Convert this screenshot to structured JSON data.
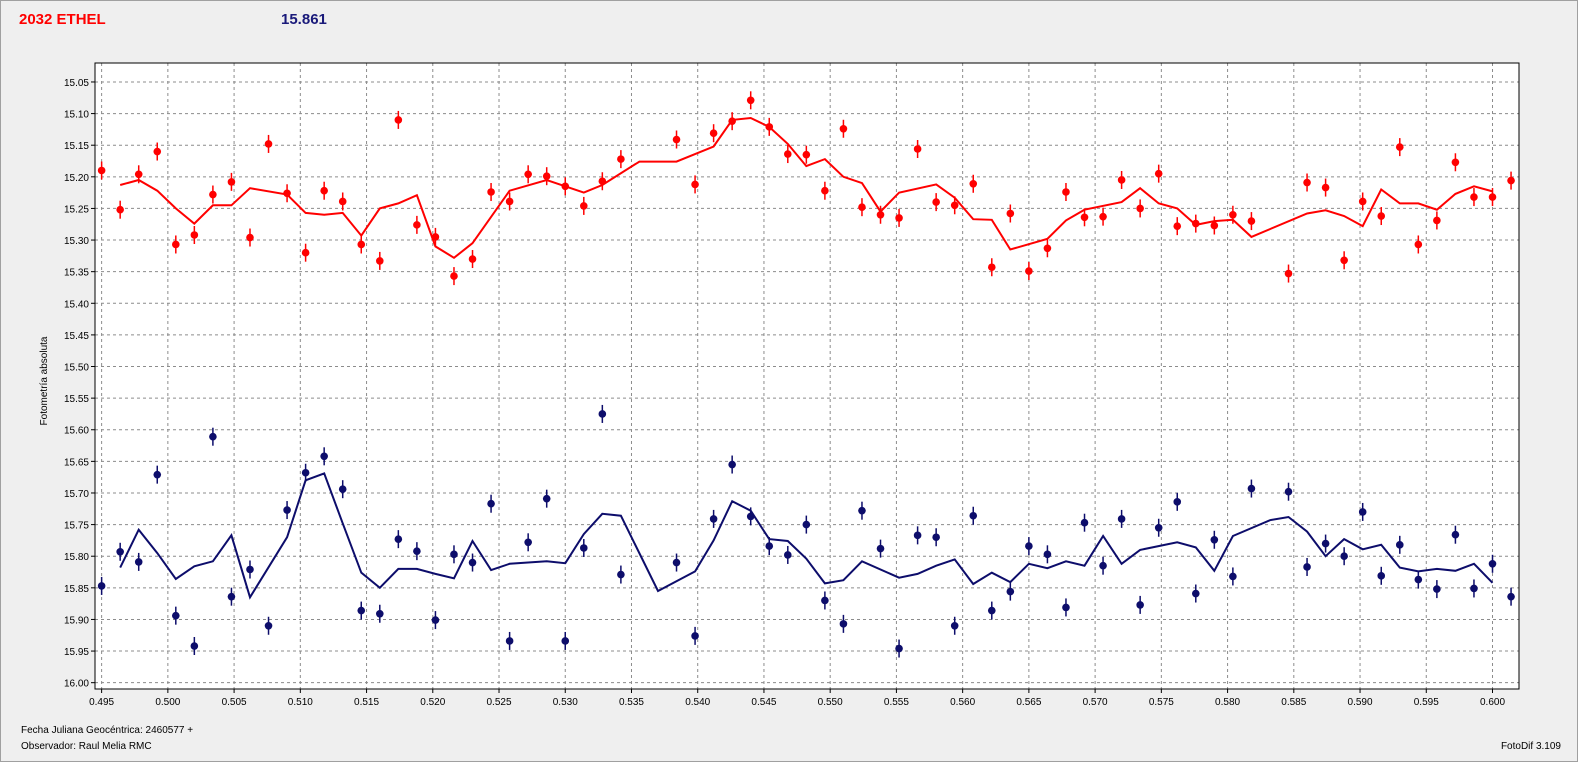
{
  "header": {
    "object_name": "2032 ETHEL",
    "mean_magnitude": "15.861"
  },
  "footer": {
    "jd_label": "Fecha Juliana Geocéntrica: 2460577 +",
    "observer_label": "Observador: Raul Melia RMC",
    "software_version": "FotoDif 3.109"
  },
  "colors": {
    "red_series": "#ff0000",
    "blue_series": "#0d0d6b",
    "background": "#ffffff",
    "grid": "#8c8c8c"
  },
  "chart_data": {
    "type": "scatter",
    "ylabel": "Fotometría absoluta",
    "xlabel": "",
    "xlim": [
      0.4945,
      0.602
    ],
    "ylim": [
      15.02,
      16.01
    ],
    "y_inverted": true,
    "grid": true,
    "x_ticks": [
      "0.495",
      "0.500",
      "0.505",
      "0.510",
      "0.515",
      "0.520",
      "0.525",
      "0.530",
      "0.535",
      "0.540",
      "0.545",
      "0.550",
      "0.555",
      "0.560",
      "0.565",
      "0.570",
      "0.575",
      "0.580",
      "0.585",
      "0.590",
      "0.595",
      "0.600"
    ],
    "y_ticks": [
      "15.05",
      "15.10",
      "15.15",
      "15.20",
      "15.25",
      "15.30",
      "15.35",
      "15.40",
      "15.45",
      "15.50",
      "15.55",
      "15.60",
      "15.65",
      "15.70",
      "15.75",
      "15.80",
      "15.85",
      "15.90",
      "15.95",
      "16.00"
    ],
    "series": [
      {
        "color": "#ff0000",
        "points": [
          [
            0.495,
            15.19
          ],
          [
            0.4964,
            15.252
          ],
          [
            0.4978,
            15.196
          ],
          [
            0.4992,
            15.16
          ],
          [
            0.5006,
            15.307
          ],
          [
            0.502,
            15.292
          ],
          [
            0.5034,
            15.228
          ],
          [
            0.5048,
            15.208
          ],
          [
            0.5062,
            15.296
          ],
          [
            0.5076,
            15.148
          ],
          [
            0.509,
            15.226
          ],
          [
            0.5104,
            15.32
          ],
          [
            0.5118,
            15.222
          ],
          [
            0.5132,
            15.239
          ],
          [
            0.5146,
            15.307
          ],
          [
            0.516,
            15.333
          ],
          [
            0.5174,
            15.11
          ],
          [
            0.5188,
            15.276
          ],
          [
            0.5202,
            15.295
          ],
          [
            0.5216,
            15.357
          ],
          [
            0.523,
            15.33
          ],
          [
            0.5244,
            15.224
          ],
          [
            0.5258,
            15.239
          ],
          [
            0.5272,
            15.196
          ],
          [
            0.5286,
            15.199
          ],
          [
            0.53,
            15.215
          ],
          [
            0.5314,
            15.246
          ],
          [
            0.5328,
            15.207
          ],
          [
            0.5342,
            15.172
          ],
          [
            0.5384,
            15.141
          ],
          [
            0.5398,
            15.212
          ],
          [
            0.5412,
            15.131
          ],
          [
            0.5426,
            15.112
          ],
          [
            0.544,
            15.079
          ],
          [
            0.5454,
            15.121
          ],
          [
            0.5468,
            15.164
          ],
          [
            0.5482,
            15.165
          ],
          [
            0.5496,
            15.222
          ],
          [
            0.551,
            15.124
          ],
          [
            0.5524,
            15.248
          ],
          [
            0.5538,
            15.26
          ],
          [
            0.5552,
            15.265
          ],
          [
            0.5566,
            15.156
          ],
          [
            0.558,
            15.24
          ],
          [
            0.5594,
            15.245
          ],
          [
            0.5608,
            15.211
          ],
          [
            0.5622,
            15.343
          ],
          [
            0.5636,
            15.258
          ],
          [
            0.565,
            15.349
          ],
          [
            0.5664,
            15.313
          ],
          [
            0.5678,
            15.224
          ],
          [
            0.5692,
            15.264
          ],
          [
            0.5706,
            15.263
          ],
          [
            0.572,
            15.205
          ],
          [
            0.5734,
            15.25
          ],
          [
            0.5748,
            15.195
          ],
          [
            0.5762,
            15.278
          ],
          [
            0.5776,
            15.274
          ],
          [
            0.579,
            15.277
          ],
          [
            0.5804,
            15.26
          ],
          [
            0.5818,
            15.27
          ],
          [
            0.5846,
            15.353
          ],
          [
            0.586,
            15.209
          ],
          [
            0.5874,
            15.217
          ],
          [
            0.5888,
            15.332
          ],
          [
            0.5902,
            15.239
          ],
          [
            0.5916,
            15.262
          ],
          [
            0.593,
            15.153
          ],
          [
            0.5944,
            15.307
          ],
          [
            0.5958,
            15.269
          ],
          [
            0.5972,
            15.177
          ],
          [
            0.5986,
            15.232
          ],
          [
            0.6,
            15.232
          ],
          [
            0.6014,
            15.206
          ]
        ],
        "trend": [
          [
            0.4964,
            15.213
          ],
          [
            0.4978,
            15.205
          ],
          [
            0.4992,
            15.222
          ],
          [
            0.5006,
            15.25
          ],
          [
            0.502,
            15.274
          ],
          [
            0.5034,
            15.245
          ],
          [
            0.5048,
            15.245
          ],
          [
            0.5062,
            15.218
          ],
          [
            0.509,
            15.228
          ],
          [
            0.5104,
            15.257
          ],
          [
            0.5118,
            15.26
          ],
          [
            0.5132,
            15.257
          ],
          [
            0.5146,
            15.293
          ],
          [
            0.516,
            15.25
          ],
          [
            0.5174,
            15.242
          ],
          [
            0.5188,
            15.229
          ],
          [
            0.5202,
            15.31
          ],
          [
            0.5216,
            15.328
          ],
          [
            0.523,
            15.305
          ],
          [
            0.5258,
            15.222
          ],
          [
            0.5286,
            15.205
          ],
          [
            0.5314,
            15.225
          ],
          [
            0.5328,
            15.213
          ],
          [
            0.5356,
            15.176
          ],
          [
            0.5384,
            15.176
          ],
          [
            0.5412,
            15.152
          ],
          [
            0.5426,
            15.11
          ],
          [
            0.544,
            15.107
          ],
          [
            0.5454,
            15.121
          ],
          [
            0.5468,
            15.148
          ],
          [
            0.5482,
            15.183
          ],
          [
            0.5496,
            15.172
          ],
          [
            0.551,
            15.2
          ],
          [
            0.5524,
            15.21
          ],
          [
            0.5538,
            15.255
          ],
          [
            0.5552,
            15.225
          ],
          [
            0.558,
            15.212
          ],
          [
            0.5594,
            15.233
          ],
          [
            0.5608,
            15.267
          ],
          [
            0.5622,
            15.268
          ],
          [
            0.5636,
            15.315
          ],
          [
            0.5664,
            15.298
          ],
          [
            0.5678,
            15.269
          ],
          [
            0.5692,
            15.252
          ],
          [
            0.572,
            15.24
          ],
          [
            0.5734,
            15.218
          ],
          [
            0.5748,
            15.242
          ],
          [
            0.5762,
            15.25
          ],
          [
            0.5776,
            15.276
          ],
          [
            0.579,
            15.27
          ],
          [
            0.5804,
            15.268
          ],
          [
            0.5818,
            15.295
          ],
          [
            0.586,
            15.258
          ],
          [
            0.5874,
            15.253
          ],
          [
            0.5888,
            15.262
          ],
          [
            0.5902,
            15.278
          ],
          [
            0.5916,
            15.22
          ],
          [
            0.593,
            15.242
          ],
          [
            0.5944,
            15.242
          ],
          [
            0.5958,
            15.252
          ],
          [
            0.5972,
            15.227
          ],
          [
            0.5986,
            15.215
          ],
          [
            0.6,
            15.223
          ]
        ]
      },
      {
        "color": "#0d0d6b",
        "points": [
          [
            0.495,
            15.847
          ],
          [
            0.4964,
            15.793
          ],
          [
            0.4978,
            15.809
          ],
          [
            0.4992,
            15.671
          ],
          [
            0.5006,
            15.894
          ],
          [
            0.502,
            15.942
          ],
          [
            0.5034,
            15.611
          ],
          [
            0.5048,
            15.864
          ],
          [
            0.5062,
            15.821
          ],
          [
            0.5076,
            15.91
          ],
          [
            0.509,
            15.727
          ],
          [
            0.5104,
            15.668
          ],
          [
            0.5118,
            15.642
          ],
          [
            0.5132,
            15.694
          ],
          [
            0.5146,
            15.886
          ],
          [
            0.516,
            15.891
          ],
          [
            0.5174,
            15.773
          ],
          [
            0.5188,
            15.792
          ],
          [
            0.5202,
            15.901
          ],
          [
            0.5216,
            15.797
          ],
          [
            0.523,
            15.81
          ],
          [
            0.5244,
            15.717
          ],
          [
            0.5258,
            15.934
          ],
          [
            0.5272,
            15.778
          ],
          [
            0.5286,
            15.709
          ],
          [
            0.53,
            15.934
          ],
          [
            0.5314,
            15.787
          ],
          [
            0.5328,
            15.575
          ],
          [
            0.5342,
            15.829
          ],
          [
            0.5384,
            15.81
          ],
          [
            0.5398,
            15.926
          ],
          [
            0.5412,
            15.741
          ],
          [
            0.5426,
            15.655
          ],
          [
            0.544,
            15.737
          ],
          [
            0.5454,
            15.784
          ],
          [
            0.5468,
            15.798
          ],
          [
            0.5482,
            15.75
          ],
          [
            0.5496,
            15.87
          ],
          [
            0.551,
            15.907
          ],
          [
            0.5524,
            15.728
          ],
          [
            0.5538,
            15.788
          ],
          [
            0.5552,
            15.946
          ],
          [
            0.5566,
            15.767
          ],
          [
            0.558,
            15.77
          ],
          [
            0.5594,
            15.91
          ],
          [
            0.5608,
            15.736
          ],
          [
            0.5622,
            15.886
          ],
          [
            0.5636,
            15.856
          ],
          [
            0.565,
            15.784
          ],
          [
            0.5664,
            15.797
          ],
          [
            0.5678,
            15.881
          ],
          [
            0.5692,
            15.747
          ],
          [
            0.5706,
            15.815
          ],
          [
            0.572,
            15.741
          ],
          [
            0.5734,
            15.877
          ],
          [
            0.5748,
            15.755
          ],
          [
            0.5762,
            15.714
          ],
          [
            0.5776,
            15.859
          ],
          [
            0.579,
            15.774
          ],
          [
            0.5804,
            15.832
          ],
          [
            0.5818,
            15.693
          ],
          [
            0.5846,
            15.698
          ],
          [
            0.586,
            15.817
          ],
          [
            0.5874,
            15.78
          ],
          [
            0.5888,
            15.8
          ],
          [
            0.5902,
            15.73
          ],
          [
            0.5916,
            15.831
          ],
          [
            0.593,
            15.782
          ],
          [
            0.5944,
            15.837
          ],
          [
            0.5958,
            15.852
          ],
          [
            0.5972,
            15.766
          ],
          [
            0.5986,
            15.851
          ],
          [
            0.6,
            15.812
          ],
          [
            0.6014,
            15.864
          ]
        ],
        "trend": [
          [
            0.4964,
            15.818
          ],
          [
            0.4978,
            15.758
          ],
          [
            0.4992,
            15.795
          ],
          [
            0.5006,
            15.836
          ],
          [
            0.502,
            15.816
          ],
          [
            0.5034,
            15.808
          ],
          [
            0.5048,
            15.767
          ],
          [
            0.5062,
            15.865
          ],
          [
            0.509,
            15.77
          ],
          [
            0.5104,
            15.68
          ],
          [
            0.5118,
            15.669
          ],
          [
            0.5132,
            15.748
          ],
          [
            0.5146,
            15.826
          ],
          [
            0.516,
            15.85
          ],
          [
            0.5174,
            15.82
          ],
          [
            0.5188,
            15.82
          ],
          [
            0.5202,
            15.828
          ],
          [
            0.5216,
            15.835
          ],
          [
            0.523,
            15.776
          ],
          [
            0.5244,
            15.822
          ],
          [
            0.5258,
            15.812
          ],
          [
            0.5286,
            15.808
          ],
          [
            0.53,
            15.811
          ],
          [
            0.5314,
            15.765
          ],
          [
            0.5328,
            15.733
          ],
          [
            0.5342,
            15.736
          ],
          [
            0.537,
            15.855
          ],
          [
            0.5398,
            15.824
          ],
          [
            0.5412,
            15.775
          ],
          [
            0.5426,
            15.713
          ],
          [
            0.544,
            15.728
          ],
          [
            0.5454,
            15.773
          ],
          [
            0.5468,
            15.776
          ],
          [
            0.5482,
            15.804
          ],
          [
            0.5496,
            15.843
          ],
          [
            0.551,
            15.838
          ],
          [
            0.5524,
            15.808
          ],
          [
            0.5552,
            15.834
          ],
          [
            0.5566,
            15.828
          ],
          [
            0.558,
            15.815
          ],
          [
            0.5594,
            15.805
          ],
          [
            0.5608,
            15.844
          ],
          [
            0.5622,
            15.826
          ],
          [
            0.5636,
            15.841
          ],
          [
            0.565,
            15.812
          ],
          [
            0.5664,
            15.819
          ],
          [
            0.5678,
            15.808
          ],
          [
            0.5692,
            15.815
          ],
          [
            0.5706,
            15.768
          ],
          [
            0.572,
            15.812
          ],
          [
            0.5734,
            15.79
          ],
          [
            0.5762,
            15.778
          ],
          [
            0.5776,
            15.786
          ],
          [
            0.579,
            15.823
          ],
          [
            0.5804,
            15.768
          ],
          [
            0.5832,
            15.743
          ],
          [
            0.5846,
            15.738
          ],
          [
            0.586,
            15.761
          ],
          [
            0.5874,
            15.8
          ],
          [
            0.5888,
            15.773
          ],
          [
            0.5902,
            15.789
          ],
          [
            0.5916,
            15.782
          ],
          [
            0.593,
            15.818
          ],
          [
            0.5944,
            15.824
          ],
          [
            0.5958,
            15.82
          ],
          [
            0.5972,
            15.823
          ],
          [
            0.5986,
            15.812
          ],
          [
            0.6,
            15.842
          ]
        ]
      }
    ]
  }
}
